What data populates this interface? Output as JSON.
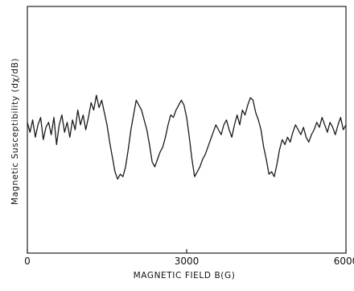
{
  "chart_data": {
    "type": "line",
    "title": "",
    "xlabel": "MAGNETIC FIELD B(G)",
    "ylabel": "Magnetic Susceptibility (dχ/dB)",
    "xlim": [
      0,
      6000
    ],
    "ylim": [
      0,
      1
    ],
    "xticks": [
      0,
      3000,
      6000
    ],
    "yticks": [],
    "grid": false,
    "legend": "none",
    "line_color": "#1a1a1a",
    "series": [
      {
        "x": [
          0,
          50,
          100,
          150,
          200,
          250,
          300,
          350,
          400,
          450,
          500,
          550,
          600,
          650,
          700,
          750,
          800,
          850,
          900,
          950,
          1000,
          1050,
          1100,
          1150,
          1200,
          1250,
          1300,
          1350,
          1400,
          1450,
          1500,
          1550,
          1600,
          1650,
          1700,
          1750,
          1800,
          1850,
          1900,
          1950,
          2000,
          2050,
          2100,
          2150,
          2200,
          2250,
          2300,
          2350,
          2400,
          2450,
          2500,
          2550,
          2600,
          2650,
          2700,
          2750,
          2800,
          2850,
          2900,
          2950,
          3000,
          3050,
          3100,
          3150,
          3200,
          3250,
          3300,
          3350,
          3400,
          3450,
          3500,
          3550,
          3600,
          3650,
          3700,
          3750,
          3800,
          3850,
          3900,
          3950,
          4000,
          4050,
          4100,
          4150,
          4200,
          4250,
          4300,
          4350,
          4400,
          4450,
          4500,
          4550,
          4600,
          4650,
          4700,
          4750,
          4800,
          4850,
          4900,
          4950,
          5000,
          5050,
          5100,
          5150,
          5200,
          5250,
          5300,
          5350,
          5400,
          5450,
          5500,
          5550,
          5600,
          5650,
          5700,
          5750,
          5800,
          5850,
          5900,
          5950,
          6000
        ],
        "values": [
          0.53,
          0.49,
          0.54,
          0.47,
          0.52,
          0.55,
          0.46,
          0.51,
          0.53,
          0.48,
          0.55,
          0.44,
          0.52,
          0.56,
          0.49,
          0.53,
          0.47,
          0.54,
          0.5,
          0.58,
          0.52,
          0.56,
          0.5,
          0.55,
          0.61,
          0.58,
          0.64,
          0.59,
          0.62,
          0.57,
          0.52,
          0.45,
          0.39,
          0.33,
          0.3,
          0.32,
          0.31,
          0.35,
          0.42,
          0.5,
          0.56,
          0.62,
          0.6,
          0.58,
          0.54,
          0.5,
          0.44,
          0.37,
          0.35,
          0.38,
          0.41,
          0.43,
          0.47,
          0.52,
          0.56,
          0.55,
          0.58,
          0.6,
          0.62,
          0.6,
          0.55,
          0.47,
          0.38,
          0.31,
          0.33,
          0.35,
          0.38,
          0.4,
          0.43,
          0.46,
          0.49,
          0.52,
          0.5,
          0.48,
          0.52,
          0.54,
          0.5,
          0.47,
          0.52,
          0.56,
          0.52,
          0.58,
          0.56,
          0.6,
          0.63,
          0.62,
          0.57,
          0.54,
          0.5,
          0.43,
          0.38,
          0.32,
          0.33,
          0.31,
          0.36,
          0.42,
          0.46,
          0.44,
          0.47,
          0.45,
          0.49,
          0.52,
          0.5,
          0.48,
          0.51,
          0.47,
          0.45,
          0.48,
          0.5,
          0.53,
          0.51,
          0.55,
          0.52,
          0.49,
          0.53,
          0.51,
          0.48,
          0.52,
          0.55,
          0.5,
          0.52
        ]
      }
    ]
  }
}
